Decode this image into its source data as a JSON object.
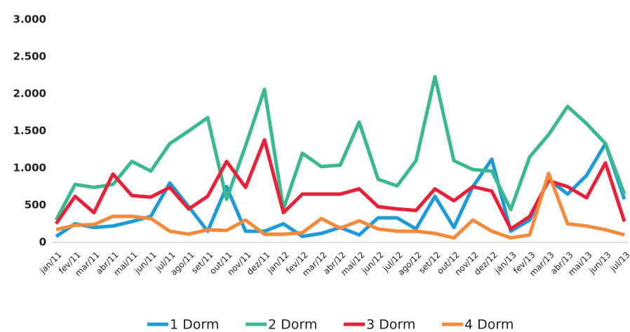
{
  "chart_data": {
    "type": "line",
    "categories": [
      "jan/11",
      "fev/11",
      "mar/11",
      "abr/11",
      "mai/11",
      "jun/11",
      "jul/11",
      "ago/11",
      "set/11",
      "out/11",
      "nov/11",
      "dez/11",
      "jan/12",
      "fev/12",
      "mar/12",
      "abr/12",
      "mai/12",
      "jun/12",
      "jul/12",
      "ago/12",
      "set/12",
      "out/12",
      "nov/12",
      "dez/12",
      "jan/13",
      "fev/13",
      "mar/13",
      "abr/13",
      "mai/13",
      "jun/13",
      "jul/13"
    ],
    "series": [
      {
        "name": "1 Dorm",
        "color": "#1e9ad6",
        "values": [
          80,
          250,
          200,
          220,
          280,
          350,
          800,
          480,
          150,
          750,
          150,
          150,
          250,
          80,
          120,
          200,
          100,
          330,
          330,
          180,
          620,
          200,
          750,
          1120,
          150,
          300,
          850,
          650,
          900,
          1330,
          580
        ]
      },
      {
        "name": "2 Dorm",
        "color": "#3bb88f",
        "values": [
          300,
          780,
          740,
          780,
          1090,
          960,
          1330,
          1500,
          1680,
          580,
          1300,
          2060,
          450,
          1200,
          1020,
          1040,
          1620,
          850,
          760,
          1100,
          2230,
          1100,
          980,
          960,
          440,
          1150,
          1450,
          1830,
          1600,
          1330,
          650
        ]
      },
      {
        "name": "3 Dorm",
        "color": "#e8213a",
        "values": [
          250,
          620,
          400,
          920,
          630,
          610,
          740,
          450,
          620,
          1090,
          740,
          1380,
          400,
          650,
          650,
          650,
          720,
          480,
          450,
          430,
          720,
          560,
          750,
          690,
          180,
          350,
          830,
          750,
          600,
          1070,
          280
        ]
      },
      {
        "name": "4 Dorm",
        "color": "#f58a3c",
        "values": [
          170,
          230,
          240,
          350,
          350,
          320,
          150,
          110,
          170,
          160,
          300,
          110,
          110,
          130,
          320,
          190,
          290,
          180,
          150,
          150,
          120,
          60,
          300,
          150,
          60,
          100,
          930,
          250,
          220,
          170,
          100
        ]
      }
    ],
    "ylim": [
      0,
      3000
    ],
    "yticks": [
      0,
      {
        "value": 500,
        "label": "500"
      },
      {
        "value": 1000,
        "label": "1.000"
      },
      {
        "value": 1500,
        "label": "1.500"
      },
      {
        "value": 2000,
        "label": "2.000"
      },
      {
        "value": 2500,
        "label": "2.500"
      },
      {
        "value": 3000,
        "label": "3.000"
      }
    ],
    "legend": "bottom"
  }
}
